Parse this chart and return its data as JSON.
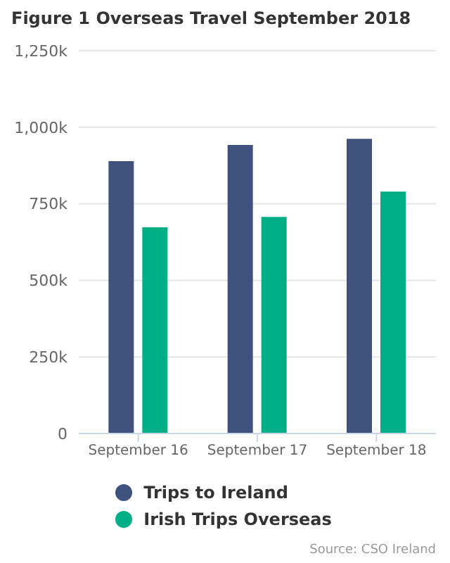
{
  "chart_data": {
    "type": "bar",
    "title": "Figure 1 Overseas Travel September 2018",
    "categories": [
      "September 16",
      "September 17",
      "September 18"
    ],
    "series": [
      {
        "name": "Trips to Ireland",
        "color": "#3f527e",
        "values": [
          889000,
          942000,
          962000
        ]
      },
      {
        "name": "Irish Trips Overseas",
        "color": "#00ae86",
        "values": [
          673000,
          707000,
          790000
        ]
      }
    ],
    "ylim": [
      0,
      1250000
    ],
    "yticks": [
      {
        "value": 0,
        "label": "0"
      },
      {
        "value": 250000,
        "label": "250k"
      },
      {
        "value": 500000,
        "label": "500k"
      },
      {
        "value": 750000,
        "label": "750k"
      },
      {
        "value": 1000000,
        "label": "1,000k"
      },
      {
        "value": 1250000,
        "label": "1,250k"
      }
    ],
    "grid": "y",
    "legend": "bottom",
    "annotations": [
      "Source: CSO Ireland"
    ]
  }
}
